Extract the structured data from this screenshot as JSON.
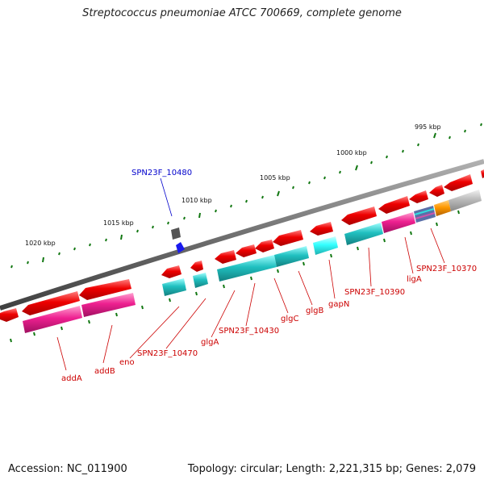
{
  "title": "Streptococcus pneumoniae ATCC 700669, complete genome",
  "footer": {
    "accession": "Accession: NC_011900",
    "summary": "Topology: circular; Length: 2,221,315 bp; Genes: 2,079"
  },
  "kbp_labels": [
    "995 kbp",
    "1000 kbp",
    "1005 kbp",
    "1010 kbp",
    "1015 kbp",
    "1020 kbp"
  ],
  "gene_labels": {
    "SPN23F_10480": "SPN23F_10480",
    "addA": "addA",
    "addB": "addB",
    "eno": "eno",
    "SPN23F_10470": "SPN23F_10470",
    "glgA": "glgA",
    "SPN23F_10430": "SPN23F_10430",
    "glgC": "glgC",
    "glgB": "glgB",
    "gapN": "gapN",
    "SPN23F_10390": "SPN23F_10390",
    "ligA": "ligA",
    "SPN23F_10370": "SPN23F_10370"
  },
  "colors": {
    "backbone": "#808080",
    "cds_red": "#ee0000",
    "cds_cyan": "#20c0c0",
    "cds_cyan_light": "#33ffff",
    "cds_magenta": "#ee2090",
    "cds_orange": "#ff9900",
    "cds_gray": "#bbbbbb",
    "cds_blue": "#1a1aee",
    "tick_green": "#117711",
    "label_red": "#cc0000",
    "label_blue": "#0000cc"
  }
}
